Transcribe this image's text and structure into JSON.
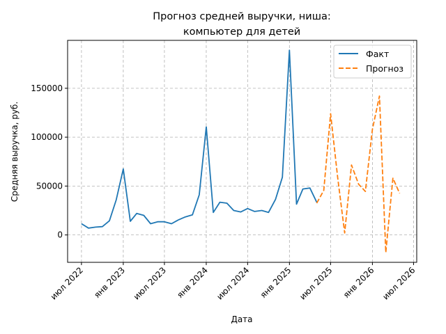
{
  "chart_data": {
    "type": "line",
    "title": [
      "Прогноз средней выручки, ниша:",
      "компьютер для детей"
    ],
    "xlabel": "Дата",
    "ylabel": "Средняя выручка, руб.",
    "x_ticks": [
      {
        "date": "2022-07-01",
        "label": "июл 2022"
      },
      {
        "date": "2023-01-01",
        "label": "янв 2023"
      },
      {
        "date": "2023-07-01",
        "label": "июл 2023"
      },
      {
        "date": "2024-01-01",
        "label": "янв 2024"
      },
      {
        "date": "2024-07-01",
        "label": "июл 2024"
      },
      {
        "date": "2025-01-01",
        "label": "янв 2025"
      },
      {
        "date": "2025-07-01",
        "label": "июл 2025"
      },
      {
        "date": "2026-01-01",
        "label": "янв 2026"
      },
      {
        "date": "2026-07-01",
        "label": "июл 2026"
      }
    ],
    "y_ticks": [
      {
        "value": 0,
        "label": "0"
      },
      {
        "value": 50000,
        "label": "50000"
      },
      {
        "value": 100000,
        "label": "100000"
      },
      {
        "value": 150000,
        "label": "150000"
      }
    ],
    "xlim": [
      "2022-05-01",
      "2026-07-15"
    ],
    "ylim": [
      -28000,
      199000
    ],
    "grid": true,
    "legend_position": "top-right",
    "series": [
      {
        "name": "Факт",
        "color": "#1f77b4",
        "style": "solid",
        "points": [
          [
            "2022-07-01",
            11500
          ],
          [
            "2022-08-01",
            7000
          ],
          [
            "2022-09-01",
            8000
          ],
          [
            "2022-10-01",
            8500
          ],
          [
            "2022-11-01",
            14500
          ],
          [
            "2022-12-01",
            36000
          ],
          [
            "2023-01-01",
            67500
          ],
          [
            "2023-02-01",
            14000
          ],
          [
            "2023-03-01",
            22000
          ],
          [
            "2023-04-01",
            20000
          ],
          [
            "2023-05-01",
            11500
          ],
          [
            "2023-06-01",
            13500
          ],
          [
            "2023-07-01",
            13500
          ],
          [
            "2023-08-01",
            11500
          ],
          [
            "2023-09-01",
            15500
          ],
          [
            "2023-10-01",
            18500
          ],
          [
            "2023-11-01",
            20500
          ],
          [
            "2023-12-01",
            41000
          ],
          [
            "2024-01-01",
            110500
          ],
          [
            "2024-02-01",
            23000
          ],
          [
            "2024-03-01",
            33500
          ],
          [
            "2024-04-01",
            32500
          ],
          [
            "2024-05-01",
            25000
          ],
          [
            "2024-06-01",
            23500
          ],
          [
            "2024-07-01",
            27000
          ],
          [
            "2024-08-01",
            24000
          ],
          [
            "2024-09-01",
            25000
          ],
          [
            "2024-10-01",
            23000
          ],
          [
            "2024-11-01",
            36500
          ],
          [
            "2024-12-01",
            59000
          ],
          [
            "2025-01-01",
            189000
          ],
          [
            "2025-02-01",
            31500
          ],
          [
            "2025-03-01",
            47000
          ],
          [
            "2025-04-01",
            48000
          ],
          [
            "2025-05-01",
            33500
          ]
        ]
      },
      {
        "name": "Прогноз",
        "color": "#ff7f0e",
        "style": "dashed",
        "points": [
          [
            "2025-05-01",
            32500
          ],
          [
            "2025-06-01",
            45500
          ],
          [
            "2025-07-01",
            124000
          ],
          [
            "2025-08-01",
            59000
          ],
          [
            "2025-09-01",
            2000
          ],
          [
            "2025-10-01",
            71500
          ],
          [
            "2025-11-01",
            52000
          ],
          [
            "2025-12-01",
            44500
          ],
          [
            "2026-01-01",
            108000
          ],
          [
            "2026-02-01",
            142000
          ],
          [
            "2026-03-01",
            -18000
          ],
          [
            "2026-04-01",
            58000
          ],
          [
            "2026-05-01",
            42500
          ]
        ]
      }
    ]
  }
}
